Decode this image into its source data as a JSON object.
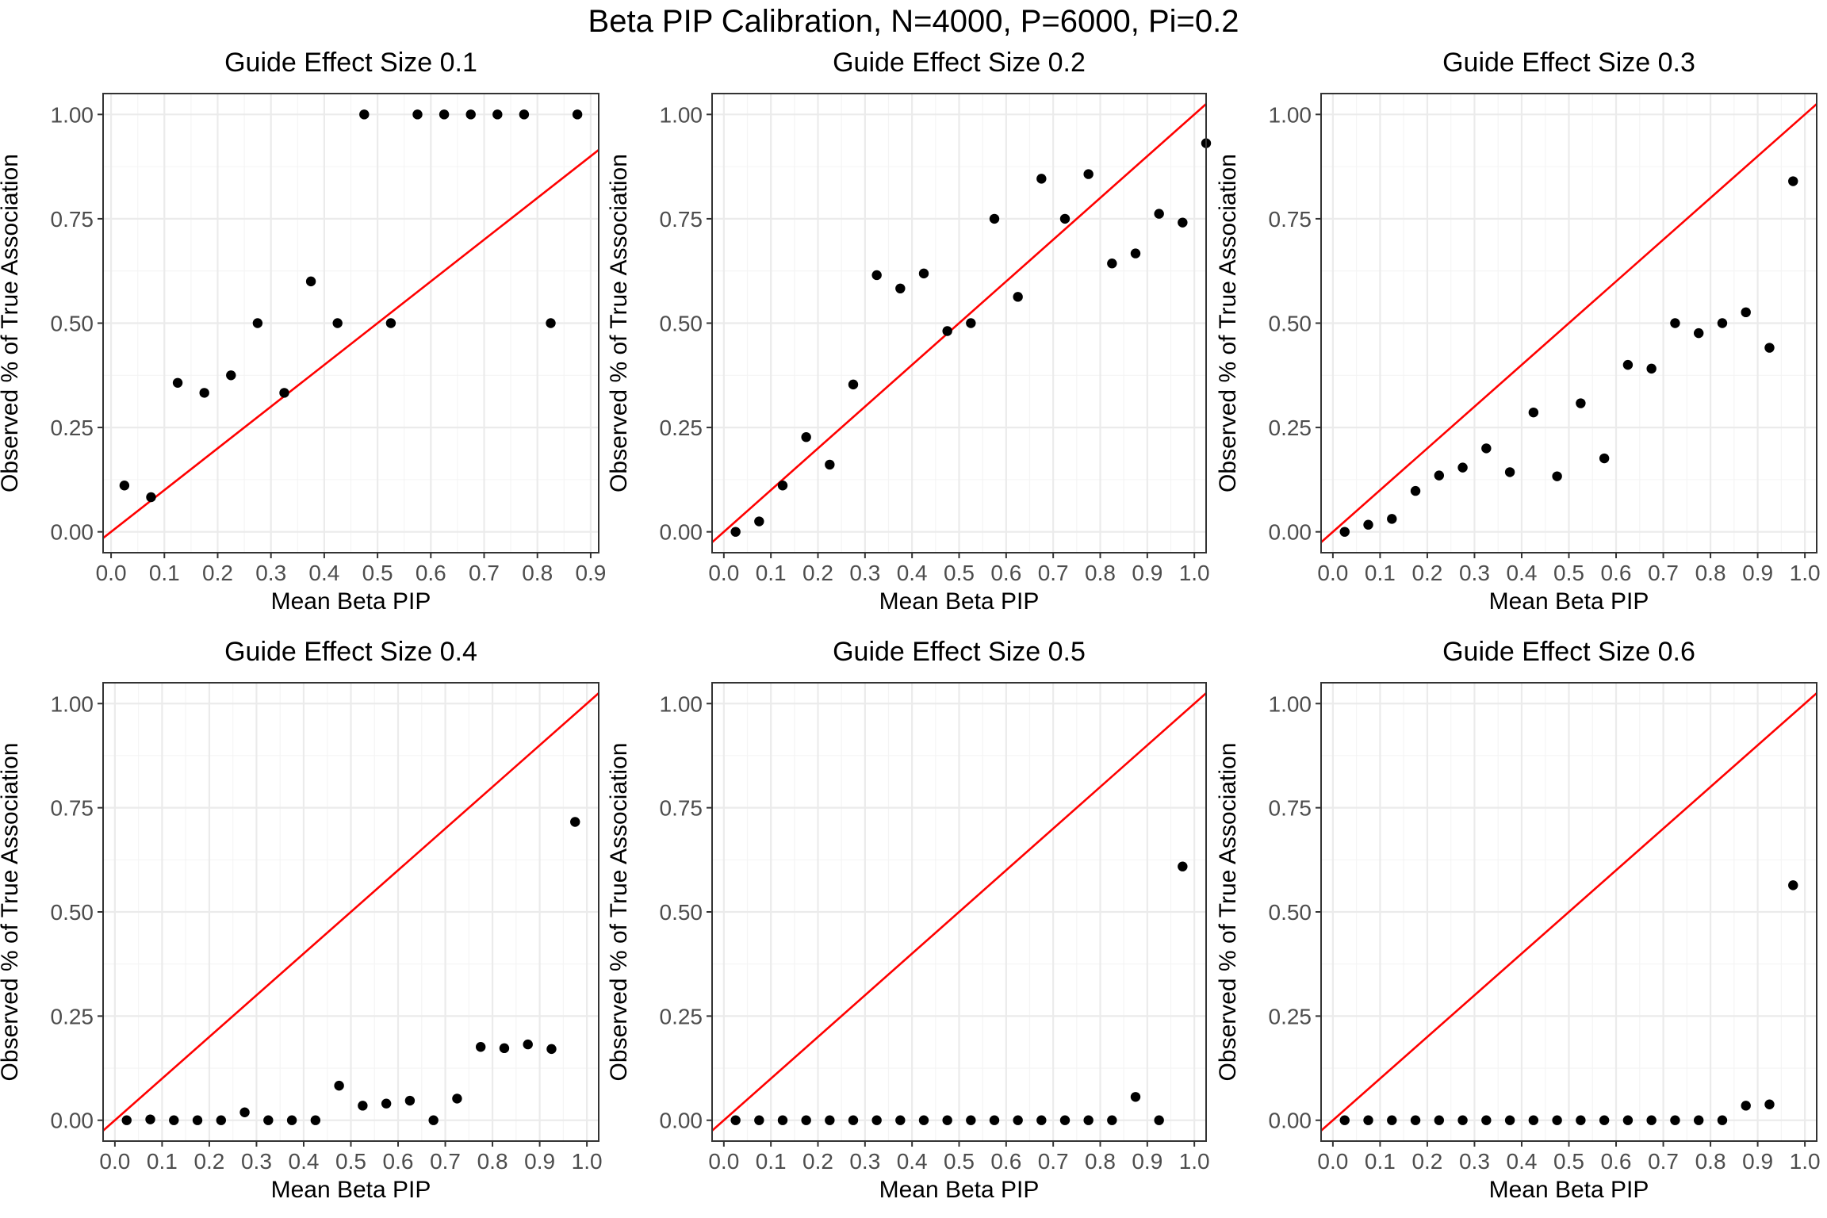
{
  "title": "Beta PIP Calibration, N=4000, P=6000, Pi=0.2",
  "chart_data": [
    {
      "type": "scatter",
      "title": "Guide Effect Size 0.1",
      "xlabel": "Mean Beta PIP",
      "ylabel": "Observed % of True Association",
      "xlim": [
        -0.015,
        0.915
      ],
      "ylim": [
        -0.05,
        1.05
      ],
      "xticks": [
        "0.0",
        "0.1",
        "0.2",
        "0.3",
        "0.4",
        "0.5",
        "0.6",
        "0.7",
        "0.8",
        "0.9"
      ],
      "yticks": [
        "0.00",
        "0.25",
        "0.50",
        "0.75",
        "1.00"
      ],
      "grid": true,
      "reference_line": {
        "slope": 1,
        "intercept": 0,
        "color": "#ff0000"
      },
      "x": [
        0.025,
        0.075,
        0.125,
        0.175,
        0.225,
        0.275,
        0.325,
        0.375,
        0.425,
        0.475,
        0.525,
        0.575,
        0.625,
        0.675,
        0.725,
        0.775,
        0.825,
        0.875
      ],
      "y": [
        0.111,
        0.083,
        0.357,
        0.333,
        0.375,
        0.5,
        0.333,
        0.6,
        0.5,
        1.0,
        0.5,
        1.0,
        1.0,
        1.0,
        1.0,
        1.0,
        0.5,
        1.0
      ]
    },
    {
      "type": "scatter",
      "title": "Guide Effect Size 0.2",
      "xlabel": "Mean Beta PIP",
      "ylabel": "Observed % of True Association",
      "xlim": [
        -0.025,
        1.025
      ],
      "ylim": [
        -0.05,
        1.05
      ],
      "xticks": [
        "0.0",
        "0.1",
        "0.2",
        "0.3",
        "0.4",
        "0.5",
        "0.6",
        "0.7",
        "0.8",
        "0.9",
        "1.0"
      ],
      "yticks": [
        "0.00",
        "0.25",
        "0.50",
        "0.75",
        "1.00"
      ],
      "grid": true,
      "reference_line": {
        "slope": 1,
        "intercept": 0,
        "color": "#ff0000"
      },
      "x": [
        0.025,
        0.075,
        0.125,
        0.175,
        0.225,
        0.275,
        0.325,
        0.375,
        0.425,
        0.475,
        0.525,
        0.575,
        0.625,
        0.675,
        0.725,
        0.775,
        0.825,
        0.875,
        0.925,
        0.975,
        1.025
      ],
      "y": [
        0.0,
        0.025,
        0.111,
        0.227,
        0.161,
        0.353,
        0.615,
        0.583,
        0.619,
        0.481,
        0.5,
        0.75,
        0.563,
        0.846,
        0.75,
        0.857,
        0.643,
        0.667,
        0.762,
        0.741,
        0.931
      ]
    },
    {
      "type": "scatter",
      "title": "Guide Effect Size 0.3",
      "xlabel": "Mean Beta PIP",
      "ylabel": "Observed % of True Association",
      "xlim": [
        -0.025,
        1.025
      ],
      "ylim": [
        -0.05,
        1.05
      ],
      "xticks": [
        "0.0",
        "0.1",
        "0.2",
        "0.3",
        "0.4",
        "0.5",
        "0.6",
        "0.7",
        "0.8",
        "0.9",
        "1.0"
      ],
      "yticks": [
        "0.00",
        "0.25",
        "0.50",
        "0.75",
        "1.00"
      ],
      "grid": true,
      "reference_line": {
        "slope": 1,
        "intercept": 0,
        "color": "#ff0000"
      },
      "x": [
        0.025,
        0.075,
        0.125,
        0.175,
        0.225,
        0.275,
        0.325,
        0.375,
        0.425,
        0.475,
        0.525,
        0.575,
        0.625,
        0.675,
        0.725,
        0.775,
        0.825,
        0.875,
        0.925,
        0.975
      ],
      "y": [
        0.0,
        0.017,
        0.031,
        0.098,
        0.135,
        0.154,
        0.2,
        0.143,
        0.286,
        0.133,
        0.308,
        0.176,
        0.4,
        0.391,
        0.5,
        0.476,
        0.5,
        0.526,
        0.441,
        0.84
      ]
    },
    {
      "type": "scatter",
      "title": "Guide Effect Size 0.4",
      "xlabel": "Mean Beta PIP",
      "ylabel": "Observed % of True Association",
      "xlim": [
        -0.025,
        1.025
      ],
      "ylim": [
        -0.05,
        1.05
      ],
      "xticks": [
        "0.0",
        "0.1",
        "0.2",
        "0.3",
        "0.4",
        "0.5",
        "0.6",
        "0.7",
        "0.8",
        "0.9",
        "1.0"
      ],
      "yticks": [
        "0.00",
        "0.25",
        "0.50",
        "0.75",
        "1.00"
      ],
      "grid": true,
      "reference_line": {
        "slope": 1,
        "intercept": 0,
        "color": "#ff0000"
      },
      "x": [
        0.025,
        0.075,
        0.125,
        0.175,
        0.225,
        0.275,
        0.325,
        0.375,
        0.425,
        0.475,
        0.525,
        0.575,
        0.625,
        0.675,
        0.725,
        0.775,
        0.825,
        0.875,
        0.925,
        0.975
      ],
      "y": [
        0.0,
        0.002,
        0.0,
        0.0,
        0.0,
        0.019,
        0.0,
        0.0,
        0.0,
        0.083,
        0.035,
        0.04,
        0.047,
        0.0,
        0.052,
        0.176,
        0.173,
        0.182,
        0.171,
        0.716
      ]
    },
    {
      "type": "scatter",
      "title": "Guide Effect Size 0.5",
      "xlabel": "Mean Beta PIP",
      "ylabel": "Observed % of True Association",
      "xlim": [
        -0.025,
        1.025
      ],
      "ylim": [
        -0.05,
        1.05
      ],
      "xticks": [
        "0.0",
        "0.1",
        "0.2",
        "0.3",
        "0.4",
        "0.5",
        "0.6",
        "0.7",
        "0.8",
        "0.9",
        "1.0"
      ],
      "yticks": [
        "0.00",
        "0.25",
        "0.50",
        "0.75",
        "1.00"
      ],
      "grid": true,
      "reference_line": {
        "slope": 1,
        "intercept": 0,
        "color": "#ff0000"
      },
      "x": [
        0.025,
        0.075,
        0.125,
        0.175,
        0.225,
        0.275,
        0.325,
        0.375,
        0.425,
        0.475,
        0.525,
        0.575,
        0.625,
        0.675,
        0.725,
        0.775,
        0.825,
        0.875,
        0.925,
        0.975
      ],
      "y": [
        0.0,
        0.0,
        0.0,
        0.0,
        0.0,
        0.0,
        0.0,
        0.0,
        0.0,
        0.0,
        0.0,
        0.0,
        0.0,
        0.0,
        0.0,
        0.0,
        0.0,
        0.056,
        0.0,
        0.609
      ]
    },
    {
      "type": "scatter",
      "title": "Guide Effect Size 0.6",
      "xlabel": "Mean Beta PIP",
      "ylabel": "Observed % of True Association",
      "xlim": [
        -0.025,
        1.025
      ],
      "ylim": [
        -0.05,
        1.05
      ],
      "xticks": [
        "0.0",
        "0.1",
        "0.2",
        "0.3",
        "0.4",
        "0.5",
        "0.6",
        "0.7",
        "0.8",
        "0.9",
        "1.0"
      ],
      "yticks": [
        "0.00",
        "0.25",
        "0.50",
        "0.75",
        "1.00"
      ],
      "grid": true,
      "reference_line": {
        "slope": 1,
        "intercept": 0,
        "color": "#ff0000"
      },
      "x": [
        0.025,
        0.075,
        0.125,
        0.175,
        0.225,
        0.275,
        0.325,
        0.375,
        0.425,
        0.475,
        0.525,
        0.575,
        0.625,
        0.675,
        0.725,
        0.775,
        0.825,
        0.875,
        0.925,
        0.975
      ],
      "y": [
        0.0,
        0.0,
        0.0,
        0.0,
        0.0,
        0.0,
        0.0,
        0.0,
        0.0,
        0.0,
        0.0,
        0.0,
        0.0,
        0.0,
        0.0,
        0.0,
        0.0,
        0.035,
        0.038,
        0.564
      ]
    }
  ]
}
